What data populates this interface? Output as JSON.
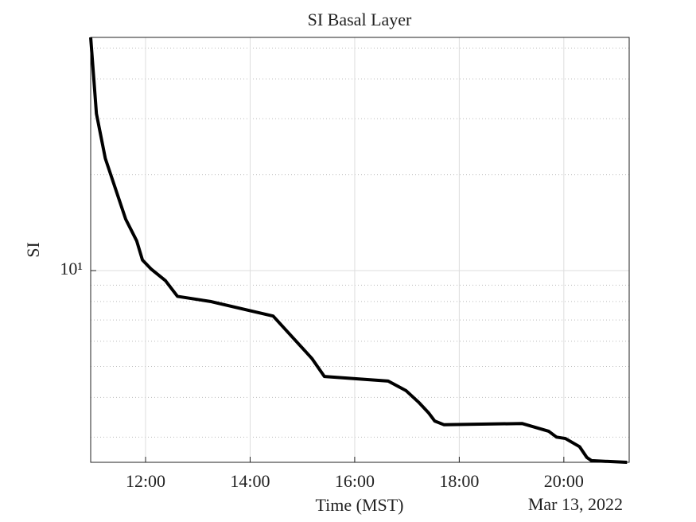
{
  "chart_data": {
    "type": "line",
    "title": "SI Basal Layer",
    "xlabel": "Time (MST)",
    "ylabel": "SI",
    "date_label": "Mar 13, 2022",
    "x": [
      10.95,
      11.06,
      11.23,
      11.62,
      11.83,
      11.94,
      12.11,
      12.38,
      12.61,
      13.24,
      14.44,
      15.18,
      15.42,
      16.64,
      16.98,
      17.23,
      17.41,
      17.53,
      17.71,
      19.2,
      19.71,
      19.86,
      20.03,
      20.3,
      20.44,
      20.53,
      21.21
    ],
    "series": [
      {
        "color": "#000000",
        "values": [
          54,
          31.1,
          22.5,
          14.5,
          12.4,
          10.8,
          10.1,
          9.3,
          8.3,
          8.0,
          7.2,
          5.3,
          4.65,
          4.5,
          4.2,
          3.85,
          3.58,
          3.37,
          3.28,
          3.31,
          3.13,
          3.0,
          2.97,
          2.8,
          2.59,
          2.53,
          2.5
        ]
      }
    ],
    "xlim": [
      10.95,
      21.25
    ],
    "xticks": [
      {
        "value": 12,
        "label": "12:00"
      },
      {
        "value": 14,
        "label": "14:00"
      },
      {
        "value": 16,
        "label": "16:00"
      },
      {
        "value": 18,
        "label": "18:00"
      },
      {
        "value": 20,
        "label": "20:00"
      }
    ],
    "ylim": [
      2.5,
      54
    ],
    "yticks": [
      {
        "value": 10,
        "label": "10¹"
      }
    ],
    "ylog": true,
    "grid": true,
    "minor_grid": true
  }
}
